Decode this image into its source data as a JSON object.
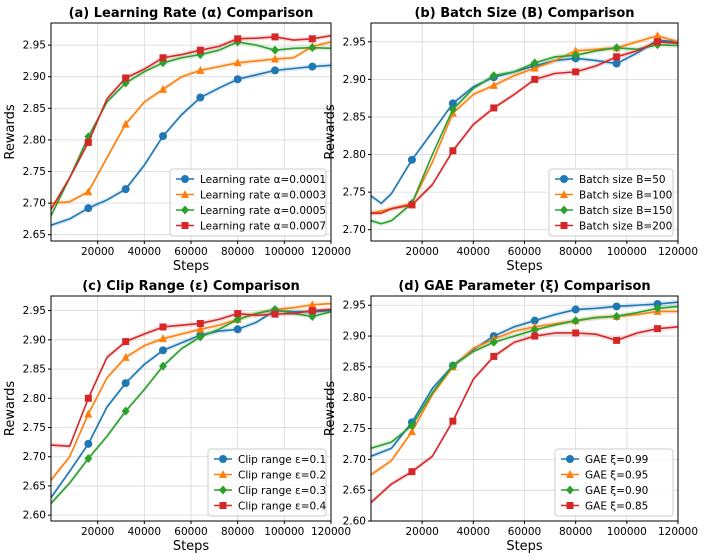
{
  "chart_data": [
    {
      "type": "line",
      "title": "(a)  Learning Rate (α) Comparison",
      "xlabel": "Steps",
      "ylabel": "Rewards",
      "xlim": [
        0,
        120000
      ],
      "ylim": [
        2.64,
        2.985
      ],
      "xticks": [
        20000,
        40000,
        60000,
        80000,
        100000,
        120000
      ],
      "xtick_labels": [
        "20000",
        "40000",
        "60000",
        "80000",
        "100000",
        "120000"
      ],
      "yticks": [
        2.65,
        2.7,
        2.75,
        2.8,
        2.85,
        2.9,
        2.95
      ],
      "ytick_labels": [
        "2.65",
        "2.70",
        "2.75",
        "2.80",
        "2.85",
        "2.90",
        "2.95"
      ],
      "legend_position": "bottom-right",
      "series": [
        {
          "name": "Learning rate α=0.0001",
          "color": "#1f77b4",
          "marker": "circle",
          "x": [
            0,
            8000,
            16000,
            24000,
            32000,
            40000,
            48000,
            56000,
            64000,
            72000,
            80000,
            88000,
            96000,
            104000,
            112000,
            120000
          ],
          "y": [
            2.665,
            2.675,
            2.692,
            2.705,
            2.722,
            2.76,
            2.806,
            2.84,
            2.867,
            2.882,
            2.896,
            2.903,
            2.91,
            2.913,
            2.916,
            2.918
          ],
          "marker_x": [
            16000,
            32000,
            48000,
            64000,
            80000,
            96000,
            112000
          ]
        },
        {
          "name": "Learning rate α=0.0003",
          "color": "#ff7f0e",
          "marker": "triangle",
          "x": [
            0,
            8000,
            16000,
            24000,
            32000,
            40000,
            48000,
            56000,
            64000,
            72000,
            80000,
            88000,
            96000,
            104000,
            112000,
            120000
          ],
          "y": [
            2.7,
            2.702,
            2.718,
            2.772,
            2.825,
            2.86,
            2.88,
            2.9,
            2.91,
            2.916,
            2.922,
            2.925,
            2.928,
            2.93,
            2.948,
            2.955
          ],
          "marker_x": [
            16000,
            32000,
            48000,
            64000,
            80000,
            96000,
            112000
          ]
        },
        {
          "name": "Learning rate α=0.0005",
          "color": "#2ca02c",
          "marker": "diamond",
          "x": [
            0,
            8000,
            16000,
            24000,
            32000,
            40000,
            48000,
            56000,
            64000,
            72000,
            80000,
            88000,
            96000,
            104000,
            112000,
            120000
          ],
          "y": [
            2.68,
            2.74,
            2.805,
            2.86,
            2.89,
            2.908,
            2.922,
            2.93,
            2.935,
            2.942,
            2.955,
            2.95,
            2.942,
            2.945,
            2.946,
            2.945
          ],
          "marker_x": [
            16000,
            32000,
            48000,
            64000,
            80000,
            96000,
            112000
          ]
        },
        {
          "name": "Learning rate α=0.0007",
          "color": "#d62728",
          "marker": "square",
          "x": [
            0,
            8000,
            16000,
            24000,
            32000,
            40000,
            48000,
            56000,
            64000,
            72000,
            80000,
            88000,
            96000,
            104000,
            112000,
            120000
          ],
          "y": [
            2.69,
            2.74,
            2.796,
            2.865,
            2.898,
            2.912,
            2.93,
            2.935,
            2.942,
            2.948,
            2.96,
            2.961,
            2.963,
            2.958,
            2.96,
            2.965
          ],
          "marker_x": [
            16000,
            32000,
            48000,
            64000,
            80000,
            96000,
            112000
          ]
        }
      ]
    },
    {
      "type": "line",
      "title": "(b)  Batch Size (B) Comparison",
      "xlabel": "Steps",
      "ylabel": "Rewards",
      "xlim": [
        0,
        120000
      ],
      "ylim": [
        2.685,
        2.975
      ],
      "xticks": [
        20000,
        40000,
        60000,
        80000,
        100000,
        120000
      ],
      "xtick_labels": [
        "20000",
        "40000",
        "60000",
        "80000",
        "100000",
        "120000"
      ],
      "yticks": [
        2.7,
        2.75,
        2.8,
        2.85,
        2.9,
        2.95
      ],
      "ytick_labels": [
        "2.70",
        "2.75",
        "2.80",
        "2.85",
        "2.90",
        "2.95"
      ],
      "legend_position": "bottom-right",
      "series": [
        {
          "name": "Batch size B=50",
          "color": "#1f77b4",
          "marker": "circle",
          "x": [
            0,
            4000,
            8000,
            16000,
            24000,
            32000,
            40000,
            48000,
            56000,
            64000,
            72000,
            80000,
            88000,
            96000,
            104000,
            112000,
            120000
          ],
          "y": [
            2.745,
            2.735,
            2.748,
            2.793,
            2.83,
            2.868,
            2.89,
            2.903,
            2.91,
            2.918,
            2.925,
            2.928,
            2.925,
            2.921,
            2.935,
            2.952,
            2.95
          ],
          "marker_x": [
            16000,
            32000,
            48000,
            64000,
            80000,
            96000,
            112000
          ]
        },
        {
          "name": "Batch size B=100",
          "color": "#ff7f0e",
          "marker": "triangle",
          "x": [
            0,
            4000,
            8000,
            16000,
            24000,
            32000,
            40000,
            48000,
            56000,
            64000,
            72000,
            80000,
            88000,
            96000,
            104000,
            112000,
            120000
          ],
          "y": [
            2.722,
            2.725,
            2.728,
            2.735,
            2.79,
            2.855,
            2.88,
            2.892,
            2.905,
            2.915,
            2.925,
            2.938,
            2.94,
            2.942,
            2.95,
            2.958,
            2.95
          ],
          "marker_x": [
            16000,
            32000,
            48000,
            64000,
            80000,
            96000,
            112000
          ]
        },
        {
          "name": "Batch size B=150",
          "color": "#2ca02c",
          "marker": "diamond",
          "x": [
            0,
            4000,
            8000,
            16000,
            24000,
            32000,
            40000,
            48000,
            56000,
            64000,
            72000,
            80000,
            88000,
            96000,
            104000,
            112000,
            120000
          ],
          "y": [
            2.712,
            2.708,
            2.712,
            2.735,
            2.8,
            2.86,
            2.888,
            2.905,
            2.91,
            2.922,
            2.93,
            2.932,
            2.938,
            2.942,
            2.94,
            2.946,
            2.945
          ],
          "marker_x": [
            16000,
            32000,
            48000,
            64000,
            80000,
            96000,
            112000
          ]
        },
        {
          "name": "Batch size B=200",
          "color": "#d62728",
          "marker": "square",
          "x": [
            0,
            4000,
            8000,
            16000,
            24000,
            32000,
            40000,
            48000,
            56000,
            64000,
            72000,
            80000,
            88000,
            96000,
            104000,
            112000,
            120000
          ],
          "y": [
            2.722,
            2.722,
            2.728,
            2.733,
            2.76,
            2.805,
            2.84,
            2.862,
            2.88,
            2.9,
            2.908,
            2.91,
            2.918,
            2.93,
            2.938,
            2.95,
            2.948
          ],
          "marker_x": [
            16000,
            32000,
            48000,
            64000,
            80000,
            96000,
            112000
          ]
        }
      ]
    },
    {
      "type": "line",
      "title": "(c)  Clip Range (ε) Comparison",
      "xlabel": "Steps",
      "ylabel": "Rewards",
      "xlim": [
        0,
        120000
      ],
      "ylim": [
        2.59,
        2.975
      ],
      "xticks": [
        20000,
        40000,
        60000,
        80000,
        100000,
        120000
      ],
      "xtick_labels": [
        "20000",
        "40000",
        "60000",
        "80000",
        "100000",
        "120000"
      ],
      "yticks": [
        2.6,
        2.65,
        2.7,
        2.75,
        2.8,
        2.85,
        2.9,
        2.95
      ],
      "ytick_labels": [
        "2.60",
        "2.65",
        "2.70",
        "2.75",
        "2.80",
        "2.85",
        "2.90",
        "2.95"
      ],
      "legend_position": "bottom-right",
      "series": [
        {
          "name": "Clip range ε=0.1",
          "color": "#1f77b4",
          "marker": "circle",
          "x": [
            0,
            8000,
            16000,
            24000,
            32000,
            40000,
            48000,
            56000,
            64000,
            72000,
            80000,
            88000,
            96000,
            104000,
            112000,
            120000
          ],
          "y": [
            2.63,
            2.675,
            2.722,
            2.785,
            2.826,
            2.858,
            2.882,
            2.895,
            2.908,
            2.915,
            2.918,
            2.93,
            2.95,
            2.948,
            2.948,
            2.95
          ],
          "marker_x": [
            16000,
            32000,
            48000,
            64000,
            80000,
            96000,
            112000
          ]
        },
        {
          "name": "Clip range ε=0.2",
          "color": "#ff7f0e",
          "marker": "triangle",
          "x": [
            0,
            8000,
            16000,
            24000,
            32000,
            40000,
            48000,
            56000,
            64000,
            72000,
            80000,
            88000,
            96000,
            104000,
            112000,
            120000
          ],
          "y": [
            2.66,
            2.7,
            2.773,
            2.835,
            2.87,
            2.89,
            2.902,
            2.91,
            2.918,
            2.925,
            2.935,
            2.945,
            2.952,
            2.955,
            2.96,
            2.962
          ],
          "marker_x": [
            16000,
            32000,
            48000,
            64000,
            80000,
            96000,
            112000
          ]
        },
        {
          "name": "Clip range ε=0.3",
          "color": "#2ca02c",
          "marker": "diamond",
          "x": [
            0,
            8000,
            16000,
            24000,
            32000,
            40000,
            48000,
            56000,
            64000,
            72000,
            80000,
            88000,
            96000,
            104000,
            112000,
            120000
          ],
          "y": [
            2.62,
            2.655,
            2.697,
            2.735,
            2.778,
            2.815,
            2.855,
            2.885,
            2.905,
            2.918,
            2.935,
            2.945,
            2.952,
            2.945,
            2.94,
            2.948
          ],
          "marker_x": [
            16000,
            32000,
            48000,
            64000,
            80000,
            96000,
            112000
          ]
        },
        {
          "name": "Clip range ε=0.4",
          "color": "#d62728",
          "marker": "square",
          "x": [
            0,
            8000,
            16000,
            24000,
            32000,
            40000,
            48000,
            56000,
            64000,
            72000,
            80000,
            88000,
            96000,
            104000,
            112000,
            120000
          ],
          "y": [
            2.72,
            2.718,
            2.8,
            2.87,
            2.897,
            2.91,
            2.922,
            2.925,
            2.928,
            2.935,
            2.945,
            2.942,
            2.944,
            2.945,
            2.95,
            2.952
          ],
          "marker_x": [
            16000,
            32000,
            48000,
            64000,
            80000,
            96000,
            112000
          ]
        }
      ]
    },
    {
      "type": "line",
      "title": "(d)  GAE Parameter (ξ) Comparison",
      "xlabel": "Steps",
      "ylabel": "Rewards",
      "xlim": [
        0,
        120000
      ],
      "ylim": [
        2.6,
        2.965
      ],
      "xticks": [
        20000,
        40000,
        60000,
        80000,
        100000,
        120000
      ],
      "xtick_labels": [
        "20000",
        "40000",
        "60000",
        "80000",
        "100000",
        "120000"
      ],
      "yticks": [
        2.6,
        2.65,
        2.7,
        2.75,
        2.8,
        2.85,
        2.9,
        2.95
      ],
      "ytick_labels": [
        "2.60",
        "2.65",
        "2.70",
        "2.75",
        "2.80",
        "2.85",
        "2.90",
        "2.95"
      ],
      "legend_position": "bottom-right",
      "series": [
        {
          "name": "GAE ξ=0.99",
          "color": "#1f77b4",
          "marker": "circle",
          "x": [
            0,
            8000,
            16000,
            24000,
            32000,
            40000,
            48000,
            56000,
            64000,
            72000,
            80000,
            88000,
            96000,
            104000,
            112000,
            120000
          ],
          "y": [
            2.705,
            2.718,
            2.76,
            2.815,
            2.852,
            2.878,
            2.9,
            2.915,
            2.925,
            2.935,
            2.943,
            2.945,
            2.948,
            2.95,
            2.952,
            2.955
          ],
          "marker_x": [
            16000,
            32000,
            48000,
            64000,
            80000,
            96000,
            112000
          ]
        },
        {
          "name": "GAE ξ=0.95",
          "color": "#ff7f0e",
          "marker": "triangle",
          "x": [
            0,
            8000,
            16000,
            24000,
            32000,
            40000,
            48000,
            56000,
            64000,
            72000,
            80000,
            88000,
            96000,
            104000,
            112000,
            120000
          ],
          "y": [
            2.675,
            2.698,
            2.745,
            2.805,
            2.85,
            2.88,
            2.895,
            2.908,
            2.915,
            2.92,
            2.925,
            2.93,
            2.932,
            2.935,
            2.94,
            2.94
          ],
          "marker_x": [
            16000,
            32000,
            48000,
            64000,
            80000,
            96000,
            112000
          ]
        },
        {
          "name": "GAE ξ=0.90",
          "color": "#2ca02c",
          "marker": "diamond",
          "x": [
            0,
            8000,
            16000,
            24000,
            32000,
            40000,
            48000,
            56000,
            64000,
            72000,
            80000,
            88000,
            96000,
            104000,
            112000,
            120000
          ],
          "y": [
            2.718,
            2.728,
            2.755,
            2.808,
            2.852,
            2.875,
            2.89,
            2.9,
            2.91,
            2.918,
            2.925,
            2.93,
            2.932,
            2.938,
            2.945,
            2.948
          ],
          "marker_x": [
            16000,
            32000,
            48000,
            64000,
            80000,
            96000,
            112000
          ]
        },
        {
          "name": "GAE ξ=0.85",
          "color": "#d62728",
          "marker": "square",
          "x": [
            0,
            8000,
            16000,
            24000,
            32000,
            40000,
            48000,
            56000,
            64000,
            72000,
            80000,
            88000,
            96000,
            104000,
            112000,
            120000
          ],
          "y": [
            2.63,
            2.66,
            2.68,
            2.705,
            2.762,
            2.83,
            2.867,
            2.89,
            2.9,
            2.905,
            2.905,
            2.903,
            2.893,
            2.905,
            2.912,
            2.915
          ],
          "marker_x": [
            16000,
            32000,
            48000,
            64000,
            80000,
            96000,
            112000
          ]
        }
      ]
    }
  ]
}
